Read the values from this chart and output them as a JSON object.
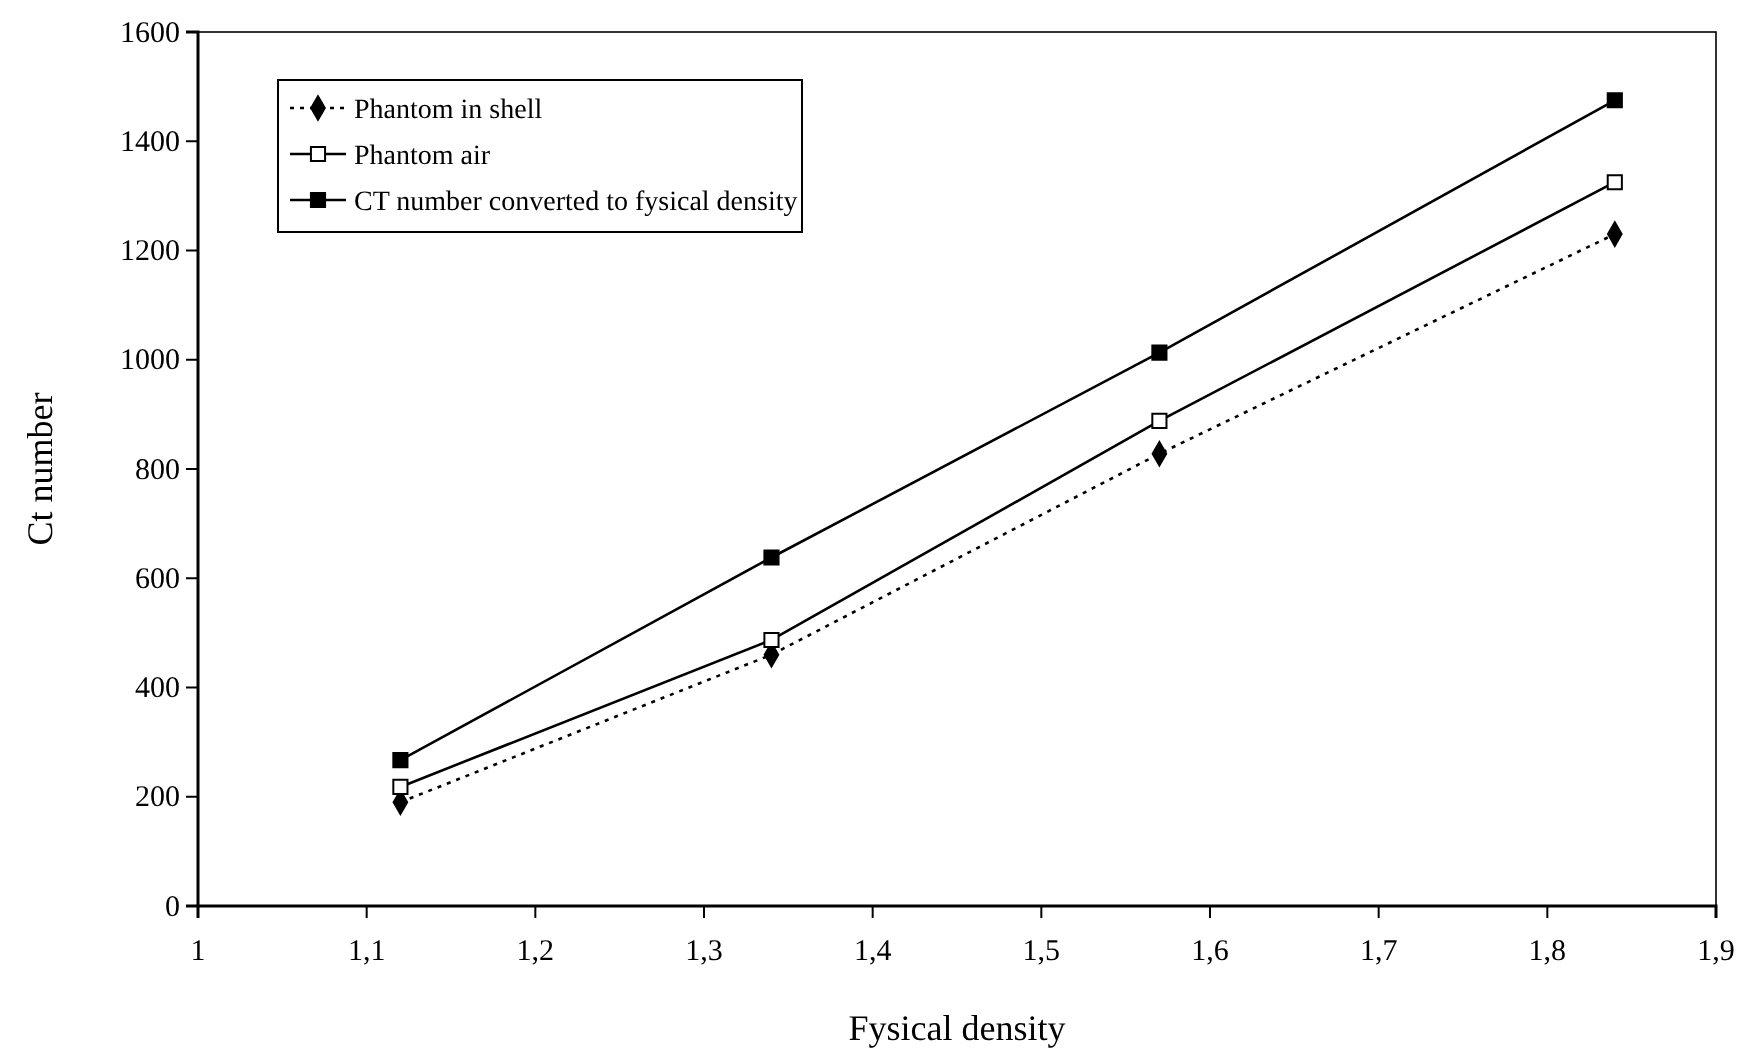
{
  "chart_data": {
    "type": "line",
    "xlabel": "Fysical density",
    "ylabel": "Ct number",
    "xlim": [
      1,
      1.9
    ],
    "xticks": [
      {
        "value": 1,
        "label": "1"
      },
      {
        "value": 1.1,
        "label": "1,1"
      },
      {
        "value": 1.2,
        "label": "1,2"
      },
      {
        "value": 1.3,
        "label": "1,3"
      },
      {
        "value": 1.4,
        "label": "1,4"
      },
      {
        "value": 1.5,
        "label": "1,5"
      },
      {
        "value": 1.6,
        "label": "1,6"
      },
      {
        "value": 1.7,
        "label": "1,7"
      },
      {
        "value": 1.8,
        "label": "1,8"
      },
      {
        "value": 1.9,
        "label": "1,9"
      }
    ],
    "ylim": [
      0,
      1600
    ],
    "yticks": [
      0,
      200,
      400,
      600,
      800,
      1000,
      1200,
      1400,
      1600
    ],
    "x": [
      1.12,
      1.34,
      1.57,
      1.84
    ],
    "series": [
      {
        "name": "Phantom in shell",
        "color": "#000000",
        "marker": "diamond",
        "line_style": "dotted",
        "values": [
          190,
          460,
          828,
          1230
        ]
      },
      {
        "name": "Phantom air",
        "color": "#000000",
        "marker": "square",
        "line_style": "solid",
        "values": [
          218,
          487,
          888,
          1325
        ]
      },
      {
        "name": "CT number converted to fysical density",
        "color": "#000000",
        "marker": "square",
        "line_style": "solid",
        "values": [
          267,
          638,
          1013,
          1475
        ]
      }
    ],
    "legend": "top left",
    "grid": false
  }
}
